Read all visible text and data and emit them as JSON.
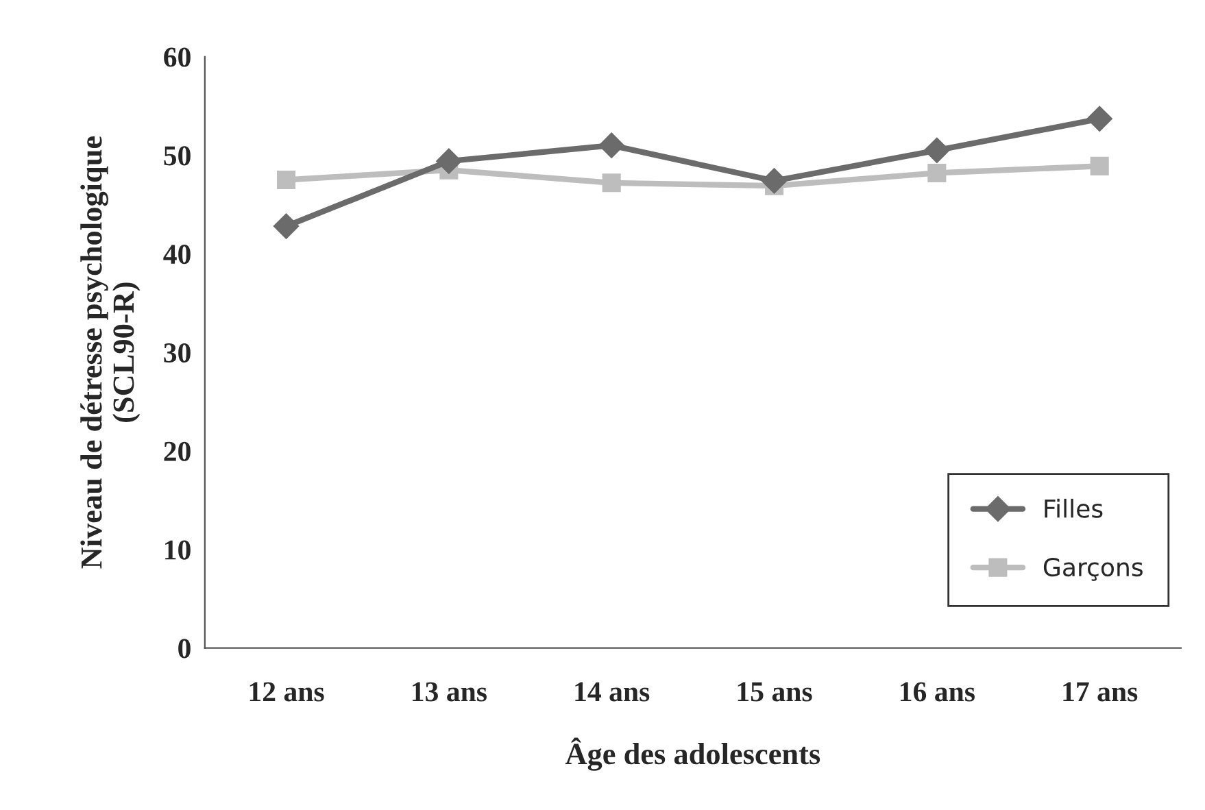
{
  "chart_data": {
    "type": "line",
    "xlabel": "Âge des adolescents",
    "ylabel": "Niveau de détresse psychologique\n(SCL90-R)",
    "categories": [
      "12 ans",
      "13 ans",
      "14 ans",
      "15 ans",
      "16 ans",
      "17 ans"
    ],
    "series": [
      {
        "name": "Filles",
        "color": "#6b6b6b",
        "marker": "diamond",
        "values": [
          42.8,
          49.4,
          51.0,
          47.4,
          50.5,
          53.7
        ]
      },
      {
        "name": "Garçons",
        "color": "#bdbdbd",
        "marker": "square",
        "values": [
          47.5,
          48.5,
          47.2,
          46.9,
          48.2,
          48.9
        ]
      }
    ],
    "ylim": [
      0,
      60
    ],
    "yticks": [
      0,
      10,
      20,
      30,
      40,
      50,
      60
    ],
    "grid": false,
    "legend": "bottom right",
    "line_style": "solid"
  }
}
